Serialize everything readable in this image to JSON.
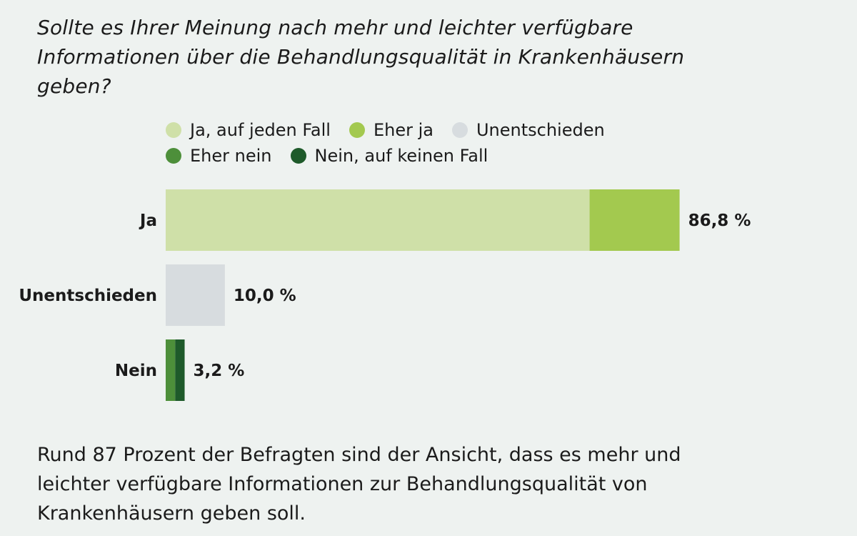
{
  "question": "Sollte es Ihrer Meinung nach mehr und leichter verfügbare Informationen über die Behandlungsqualität in Krankenhäusern geben?",
  "legend": [
    {
      "label": "Ja, auf jeden Fall",
      "color": "#cfe0a8"
    },
    {
      "label": "Eher ja",
      "color": "#a3c94f"
    },
    {
      "label": "Unentschieden",
      "color": "#d7dcdf"
    },
    {
      "label": "Eher nein",
      "color": "#4d8f3a"
    },
    {
      "label": "Nein, auf keinen Fall",
      "color": "#1e5a2a"
    }
  ],
  "chart_data": {
    "type": "bar",
    "orientation": "horizontal",
    "stacked": true,
    "categories": [
      "Ja",
      "Unentschieden",
      "Nein"
    ],
    "totals": [
      86.8,
      10.0,
      3.2
    ],
    "total_labels": [
      "86,8 %",
      "10,0 %",
      "3,2 %"
    ],
    "series": [
      {
        "name": "Ja, auf jeden Fall",
        "color": "#cfe0a8",
        "values": [
          71.6,
          0,
          0
        ]
      },
      {
        "name": "Eher ja",
        "color": "#a3c94f",
        "values": [
          15.2,
          0,
          0
        ]
      },
      {
        "name": "Unentschieden",
        "color": "#d7dcdf",
        "values": [
          0,
          10.0,
          0
        ]
      },
      {
        "name": "Eher nein",
        "color": "#4d8f3a",
        "values": [
          0,
          0,
          1.6
        ]
      },
      {
        "name": "Nein, auf keinen Fall",
        "color": "#1e5a2a",
        "values": [
          0,
          0,
          1.6
        ]
      }
    ],
    "xlim": [
      0,
      100
    ],
    "grid": false,
    "legend_position": "top"
  },
  "caption": "Rund 87 Prozent der Befragten sind der Ansicht, dass es mehr und leichter verfügbare Informationen zur Behandlungsqualität von Krankenhäusern geben soll."
}
